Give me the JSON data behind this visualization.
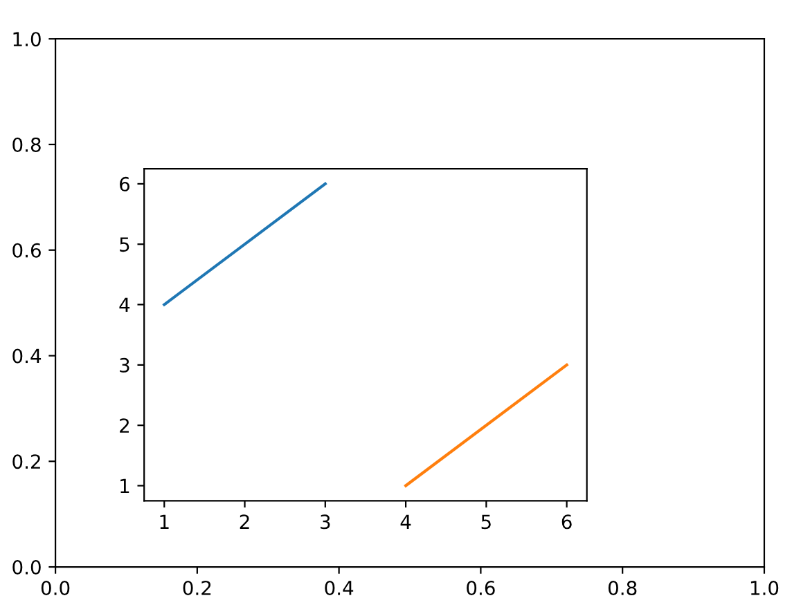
{
  "chart_data": [
    {
      "type": "line",
      "xlim": [
        0,
        1
      ],
      "ylim": [
        0,
        1
      ],
      "xticks": [
        {
          "value": 0,
          "label": "0.0"
        },
        0.2,
        0.4,
        0.6,
        0.8,
        {
          "value": 1,
          "label": "1.0"
        }
      ],
      "yticks": [
        {
          "value": 0,
          "label": "0.0"
        },
        0.2,
        0.4,
        0.6,
        0.8,
        {
          "value": 1,
          "label": "1.0"
        }
      ],
      "grid": false,
      "legend": false
    },
    {
      "type": "line",
      "series": [
        {
          "color": "#1f77b4",
          "x": [
            1,
            3
          ],
          "values": [
            4,
            6
          ]
        },
        {
          "color": "#ff7f0e",
          "x": [
            4,
            6
          ],
          "values": [
            1,
            3
          ]
        }
      ],
      "xlim": [
        0.75,
        6.25
      ],
      "ylim": [
        0.75,
        6.25
      ],
      "xticks": [
        1,
        2,
        3,
        4,
        5,
        6
      ],
      "yticks": [
        1,
        2,
        3,
        4,
        5,
        6
      ],
      "grid": false,
      "legend": false
    }
  ]
}
